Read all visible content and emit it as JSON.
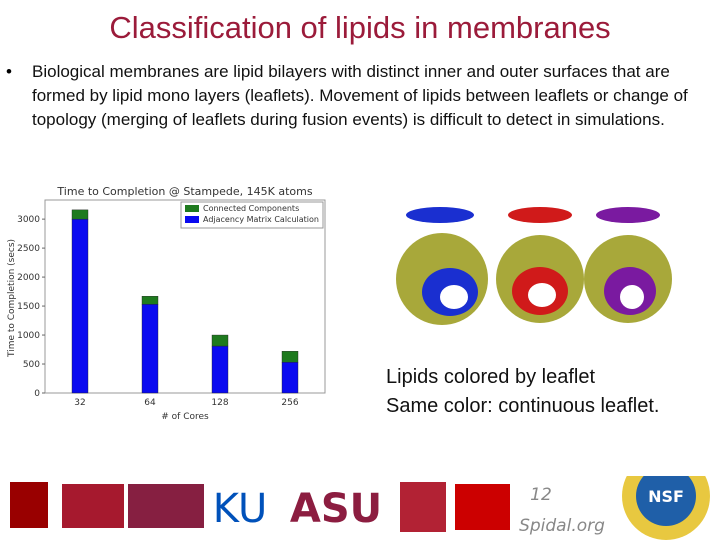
{
  "title": "Classification of lipids in membranes",
  "bullet": "Biological membranes are lipid bilayers with distinct inner and outer surfaces that are formed by lipid mono layers (leaflets). Movement of lipids between leaflets or change of topology (merging of leaflets during fusion events) is difficult to detect in simulations.",
  "chart_data": {
    "type": "stacked_bar",
    "title": "Time to Completion @ Stampede, 145K atoms",
    "x_label": "# of Cores",
    "y_label": "Time to Completion (secs)",
    "categories": [
      "32",
      "64",
      "128",
      "256"
    ],
    "series": [
      {
        "name": "Connected Components",
        "color": "#1e7a1e",
        "values": [
          160,
          140,
          190,
          190
        ]
      },
      {
        "name": "Adjacency Matrix Calculation",
        "color": "#0a0af0",
        "values": [
          3000,
          1530,
          810,
          530
        ]
      }
    ],
    "ylim": [
      0,
      3330
    ],
    "yticks": [
      0,
      500,
      1000,
      1500,
      2000,
      2500,
      3000
    ],
    "legend": "upper right"
  },
  "caption": [
    "Lipids colored by leaflet",
    "Same color: continuous leaflet."
  ],
  "page_number": "12",
  "footer": "Spidal.org",
  "logos": [
    "KU",
    "ASU",
    "NSF"
  ]
}
